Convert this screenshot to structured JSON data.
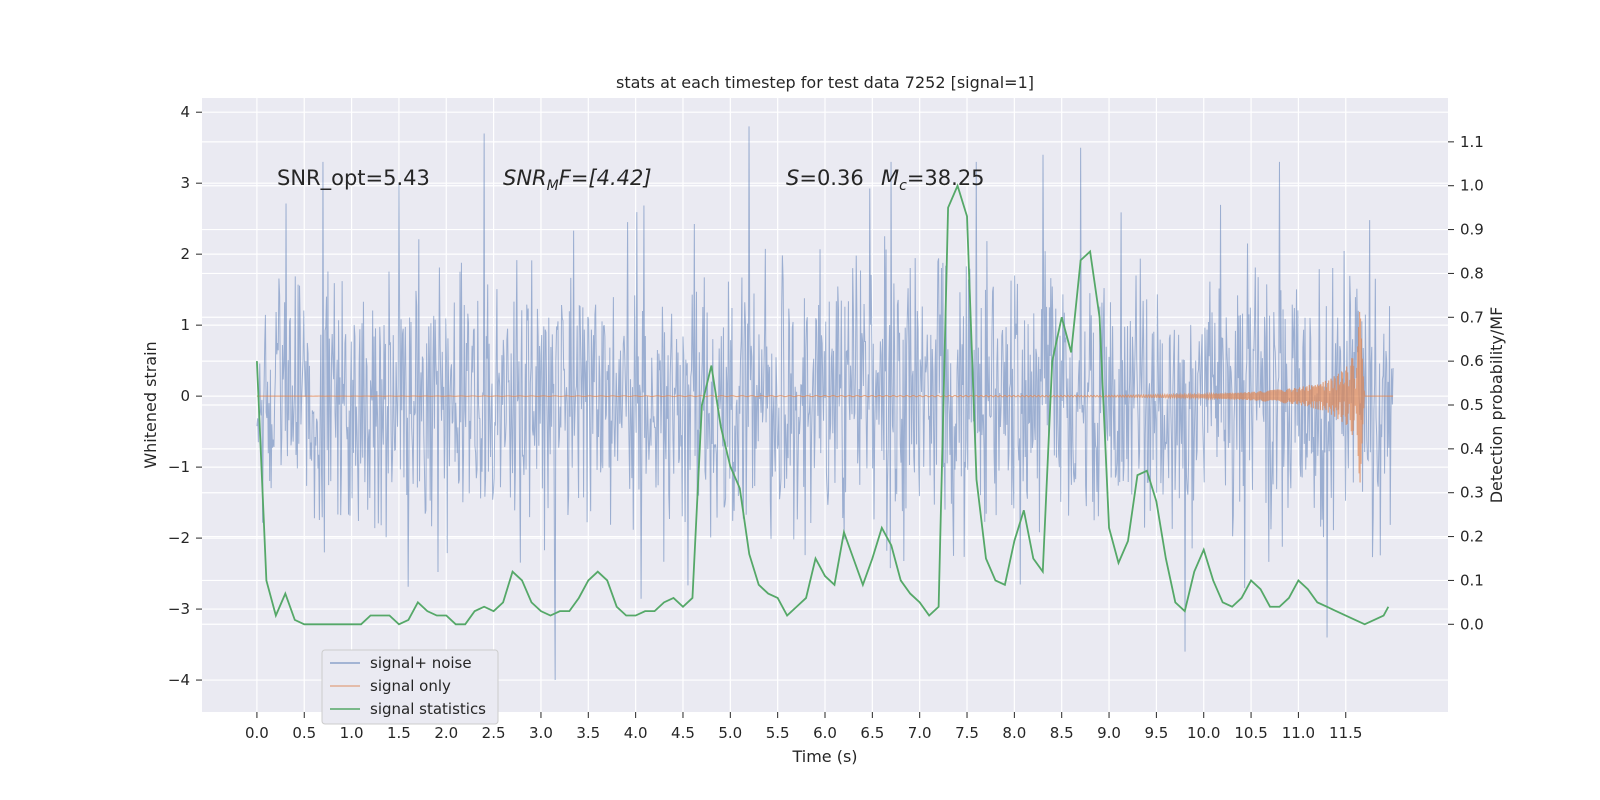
{
  "chart_data": {
    "type": "line",
    "title": "stats at each timestep for test data 7252 [signal=1]",
    "xlabel": "Time (s)",
    "ylabel_left": "Whitened strain",
    "ylabel_right": "Detection probability/MF",
    "xlim": [
      -0.58,
      12.58
    ],
    "ylim_left": [
      -4.45,
      4.2
    ],
    "ylim_right": [
      -0.2,
      1.2
    ],
    "x_ticks": [
      0.0,
      0.5,
      1.0,
      1.5,
      2.0,
      2.5,
      3.0,
      3.5,
      4.0,
      4.5,
      5.0,
      5.5,
      6.0,
      6.5,
      7.0,
      7.5,
      8.0,
      8.5,
      9.0,
      9.5,
      10.0,
      10.5,
      11.0,
      11.5
    ],
    "x_tick_labels": [
      "0.0",
      "0.5",
      "1.0",
      "1.5",
      "2.0",
      "2.5",
      "3.0",
      "3.5",
      "4.0",
      "4.5",
      "5.0",
      "5.5",
      "6.0",
      "6.5",
      "7.0",
      "7.5",
      "8.0",
      "8.5",
      "9.0",
      "9.5",
      "10.0",
      "10.5",
      "11.0",
      "11.5"
    ],
    "y_left_ticks": [
      -4,
      -3,
      -2,
      -1,
      0,
      1,
      2,
      3,
      4
    ],
    "y_left_tick_labels": [
      "−4",
      "−3",
      "−2",
      "−1",
      "0",
      "1",
      "2",
      "3",
      "4"
    ],
    "y_right_ticks": [
      0.0,
      0.1,
      0.2,
      0.3,
      0.4,
      0.5,
      0.6,
      0.7,
      0.8,
      0.9,
      1.0,
      1.1
    ],
    "y_right_tick_labels": [
      "0.0",
      "0.1",
      "0.2",
      "0.3",
      "0.4",
      "0.5",
      "0.6",
      "0.7",
      "0.8",
      "0.9",
      "1.0",
      "1.1"
    ],
    "grid": true,
    "legend_position": "lower-left",
    "annotations": {
      "snr_opt": "SNR_opt=5.43",
      "snr_mf_base": "SNR",
      "snr_mf_sub": "M",
      "snr_mf_rest": "F=[4.42]",
      "s_symbol": "S",
      "s_value": "=0.36",
      "mc_symbol": "M",
      "mc_sub": "c",
      "mc_value": "=38.25"
    },
    "series": [
      {
        "name": "signal+ noise",
        "color": "#4c72b0",
        "time_range": [
          0.0,
          12.0
        ],
        "envelope_typical": 1.6,
        "peaks_x": [
          0.7,
          1.5,
          2.4,
          3.15,
          5.2,
          6.7,
          7.6,
          8.3,
          8.7,
          9.8,
          10.8,
          11.3
        ],
        "peaks_y": [
          3.3,
          3.0,
          3.7,
          -4.0,
          3.8,
          3.3,
          3.3,
          3.4,
          3.5,
          -3.6,
          3.3,
          -3.4
        ]
      },
      {
        "name": "signal only",
        "color": "#dd8452",
        "x": [
          0.0,
          9.0,
          10.0,
          10.5,
          11.0,
          11.3,
          11.5,
          11.6,
          11.65,
          11.7
        ],
        "amplitude": [
          0.0,
          0.01,
          0.03,
          0.06,
          0.12,
          0.22,
          0.4,
          0.62,
          1.25,
          0.0
        ]
      },
      {
        "name": "signal statistics",
        "color": "#55a868",
        "x": [
          0.0,
          0.1,
          0.2,
          0.3,
          0.4,
          0.5,
          0.6,
          0.7,
          0.8,
          0.9,
          1.0,
          1.1,
          1.2,
          1.3,
          1.4,
          1.5,
          1.6,
          1.7,
          1.8,
          1.9,
          2.0,
          2.1,
          2.2,
          2.3,
          2.4,
          2.5,
          2.6,
          2.7,
          2.8,
          2.9,
          3.0,
          3.1,
          3.2,
          3.3,
          3.4,
          3.5,
          3.6,
          3.7,
          3.8,
          3.9,
          4.0,
          4.1,
          4.2,
          4.3,
          4.4,
          4.5,
          4.6,
          4.7,
          4.8,
          4.9,
          5.0,
          5.1,
          5.2,
          5.3,
          5.4,
          5.5,
          5.6,
          5.7,
          5.8,
          5.9,
          6.0,
          6.1,
          6.2,
          6.3,
          6.4,
          6.5,
          6.6,
          6.7,
          6.8,
          6.9,
          7.0,
          7.1,
          7.2,
          7.3,
          7.4,
          7.5,
          7.6,
          7.7,
          7.8,
          7.9,
          8.0,
          8.1,
          8.2,
          8.3,
          8.4,
          8.5,
          8.6,
          8.7,
          8.8,
          8.9,
          9.0,
          9.1,
          9.2,
          9.3,
          9.4,
          9.5,
          9.6,
          9.7,
          9.8,
          9.9,
          10.0,
          10.1,
          10.2,
          10.3,
          10.4,
          10.5,
          10.6,
          10.7,
          10.8,
          10.9,
          11.0,
          11.1,
          11.2,
          11.3,
          11.4,
          11.5,
          11.6,
          11.7,
          11.8,
          11.9,
          11.95
        ],
        "values": [
          0.6,
          0.1,
          0.02,
          0.07,
          0.01,
          0.0,
          0.0,
          0.0,
          0.0,
          0.0,
          0.0,
          0.0,
          0.02,
          0.02,
          0.02,
          0.0,
          0.01,
          0.05,
          0.03,
          0.02,
          0.02,
          0.0,
          0.0,
          0.03,
          0.04,
          0.03,
          0.05,
          0.12,
          0.1,
          0.05,
          0.03,
          0.02,
          0.03,
          0.03,
          0.06,
          0.1,
          0.12,
          0.1,
          0.04,
          0.02,
          0.02,
          0.03,
          0.03,
          0.05,
          0.06,
          0.04,
          0.06,
          0.5,
          0.59,
          0.45,
          0.36,
          0.31,
          0.16,
          0.09,
          0.07,
          0.06,
          0.02,
          0.04,
          0.06,
          0.15,
          0.11,
          0.09,
          0.21,
          0.15,
          0.09,
          0.15,
          0.22,
          0.18,
          0.1,
          0.07,
          0.05,
          0.02,
          0.04,
          0.95,
          1.0,
          0.93,
          0.33,
          0.15,
          0.1,
          0.09,
          0.19,
          0.26,
          0.15,
          0.12,
          0.6,
          0.7,
          0.62,
          0.83,
          0.85,
          0.7,
          0.22,
          0.14,
          0.19,
          0.34,
          0.35,
          0.28,
          0.15,
          0.05,
          0.03,
          0.12,
          0.17,
          0.1,
          0.05,
          0.04,
          0.06,
          0.1,
          0.08,
          0.04,
          0.04,
          0.06,
          0.1,
          0.08,
          0.05,
          0.04,
          0.03,
          0.02,
          0.01,
          0.0,
          0.01,
          0.02,
          0.04
        ]
      }
    ]
  },
  "legend": {
    "items": [
      {
        "label": "signal+ noise",
        "color": "#4c72b0"
      },
      {
        "label": "signal only",
        "color": "#dd8452"
      },
      {
        "label": "signal statistics",
        "color": "#55a868"
      }
    ]
  }
}
